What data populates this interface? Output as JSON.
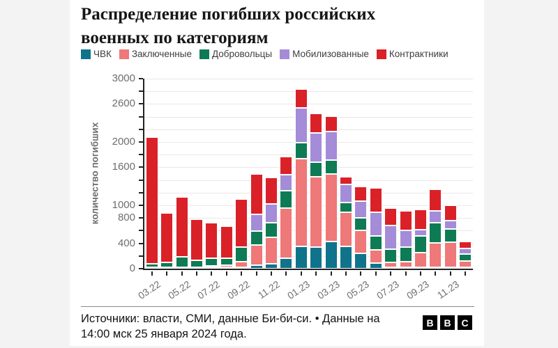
{
  "title": "Распределение погибших российских военных по категориям",
  "legend": [
    {
      "label": "ЧВК",
      "color": "#0f738c"
    },
    {
      "label": "Заключенные",
      "color": "#ef7878"
    },
    {
      "label": "Добровольцы",
      "color": "#0e7b54"
    },
    {
      "label": "Мобилизованные",
      "color": "#a48cd8"
    },
    {
      "label": "Контрактники",
      "color": "#da2128"
    }
  ],
  "chart_data": {
    "type": "bar",
    "subtype": "stacked",
    "title": "Распределение погибших российских военных по категориям",
    "xlabel": "",
    "ylabel": "количество погибших",
    "ylim": [
      0,
      3000
    ],
    "grid": true,
    "grid_step": 200,
    "y_tick_step": 200,
    "y_ticks_labeled": [
      3000,
      2600,
      2000,
      1600,
      1000,
      800,
      400,
      0
    ],
    "categories": [
      "03.22",
      "04.22",
      "05.22",
      "06.22",
      "07.22",
      "08.22",
      "09.22",
      "10.22",
      "11.22",
      "12.22",
      "01.23",
      "02.23",
      "03.23",
      "04.23",
      "05.23",
      "06.23",
      "07.23",
      "08.23",
      "09.23",
      "10.23",
      "11.23",
      "12.23"
    ],
    "x_labels_shown": [
      "03.22",
      "05.22",
      "07.22",
      "09.22",
      "11.22",
      "01.23",
      "03.23",
      "05.23",
      "07.23",
      "09.23",
      "11.23"
    ],
    "series": [
      {
        "name": "ЧВК",
        "color": "#0f738c",
        "values": [
          15,
          10,
          10,
          10,
          10,
          10,
          20,
          50,
          75,
          170,
          355,
          345,
          430,
          355,
          245,
          90,
          20,
          20,
          20,
          15,
          10,
          10
        ]
      },
      {
        "name": "Заключенные",
        "color": "#ef7878",
        "values": [
          0,
          0,
          0,
          0,
          10,
          30,
          90,
          320,
          420,
          790,
          1380,
          1110,
          1060,
          530,
          360,
          210,
          75,
          90,
          230,
          385,
          395,
          100
        ]
      },
      {
        "name": "Добровольцы",
        "color": "#0e7b54",
        "values": [
          60,
          80,
          170,
          115,
          120,
          110,
          230,
          220,
          230,
          275,
          255,
          230,
          230,
          155,
          200,
          220,
          210,
          230,
          265,
          320,
          210,
          105
        ]
      },
      {
        "name": "Мобилизованные",
        "color": "#a48cd8",
        "values": [
          0,
          0,
          0,
          0,
          0,
          0,
          0,
          265,
          295,
          245,
          550,
          455,
          440,
          285,
          265,
          375,
          370,
          265,
          95,
          185,
          135,
          90
        ]
      },
      {
        "name": "Контрактники",
        "color": "#da2128",
        "values": [
          1990,
          775,
          940,
          645,
          560,
          510,
          760,
          635,
          415,
          285,
          300,
          310,
          245,
          130,
          230,
          375,
          285,
          300,
          320,
          345,
          235,
          110
        ]
      }
    ]
  },
  "footer": {
    "source_text": "Источники: власти, СМИ, данные Би-би-си. • Данные на 14:00 мск 25 января 2024 года.",
    "logo_letters": [
      "B",
      "B",
      "C"
    ]
  }
}
